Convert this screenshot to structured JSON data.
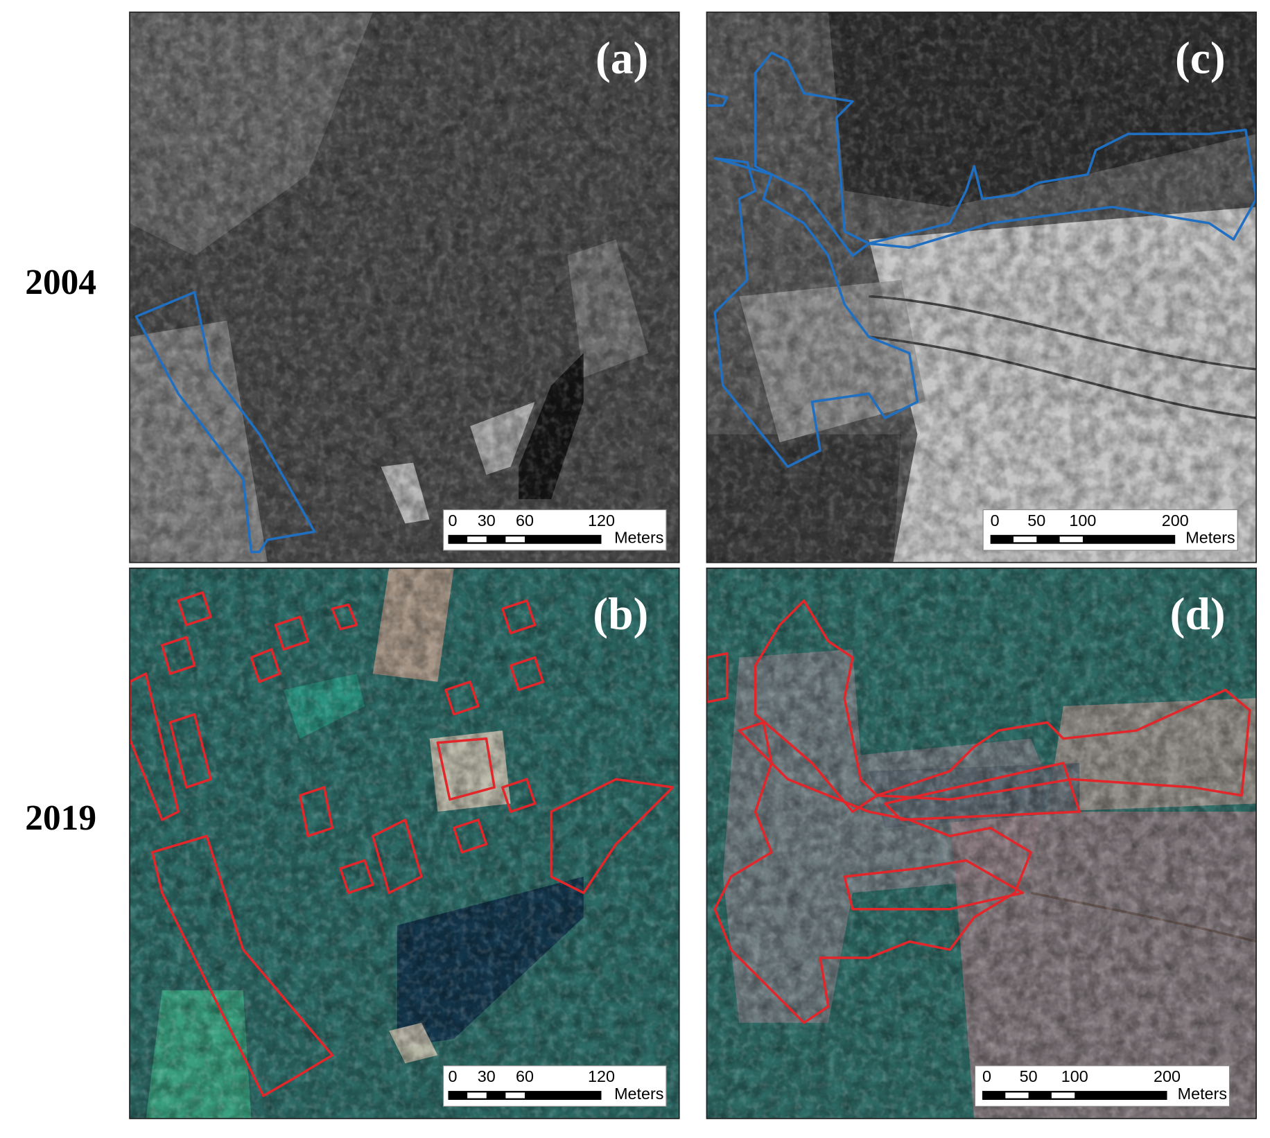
{
  "row_labels": [
    "2004",
    "2019"
  ],
  "panels": [
    {
      "label": "(a)",
      "scale_bar": {
        "ticks": [
          0,
          30,
          60,
          120
        ],
        "unit": "Meters"
      }
    },
    {
      "label": "(b)",
      "scale_bar": {
        "ticks": [
          0,
          30,
          60,
          120
        ],
        "unit": "Meters"
      }
    },
    {
      "label": "(c)",
      "scale_bar": {
        "ticks": [
          0,
          50,
          100,
          200
        ],
        "unit": "Meters"
      }
    },
    {
      "label": "(d)",
      "scale_bar": {
        "ticks": [
          0,
          50,
          100,
          200
        ],
        "unit": "Meters"
      }
    }
  ]
}
